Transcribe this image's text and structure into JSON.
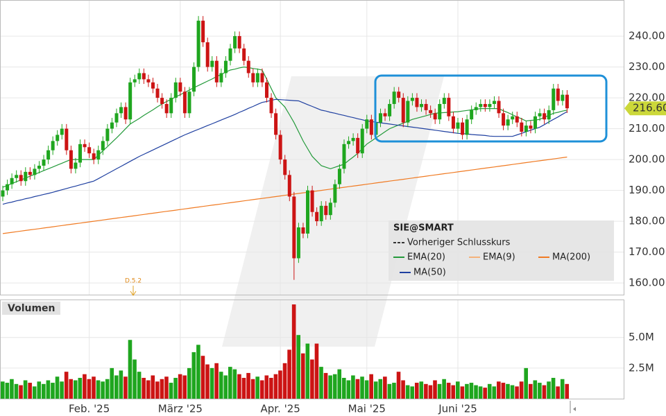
{
  "chart_data": [
    {
      "type": "candlestick",
      "title": "SIE@SMART",
      "up_color": "#1fa61f",
      "down_color": "#cc1414",
      "open": [
        188,
        190,
        192,
        194,
        195,
        193,
        196,
        195,
        197,
        198,
        200,
        203,
        206,
        208,
        210,
        203,
        197,
        199,
        205,
        204,
        202,
        200,
        203,
        206,
        210,
        212,
        215,
        217,
        213,
        225,
        226,
        228,
        226,
        225,
        223,
        220,
        218,
        215,
        220,
        225,
        222,
        215,
        222,
        230,
        245,
        238,
        230,
        232,
        225,
        228,
        232,
        236,
        240,
        236,
        232,
        228,
        225,
        228,
        225,
        220,
        215,
        208,
        200,
        195,
        188,
        168,
        178,
        176,
        190,
        183,
        180,
        185,
        182,
        186,
        192,
        197,
        205,
        206,
        207,
        202,
        210,
        213,
        208,
        212,
        215,
        214,
        218,
        222,
        220,
        212,
        219,
        220,
        217,
        218,
        216,
        215,
        213,
        218,
        220,
        214,
        210,
        212,
        208,
        213,
        216,
        217,
        218,
        217,
        218,
        219,
        215,
        211,
        213,
        214,
        212,
        209,
        211,
        210,
        214,
        215,
        213,
        216,
        223,
        219,
        221
      ],
      "high": [
        191.5,
        193.5,
        195.5,
        196.5,
        196.5,
        197.5,
        197.5,
        198.5,
        199.5,
        201.5,
        204.5,
        207.5,
        209.5,
        211.5,
        211.5,
        204.5,
        200.5,
        206.5,
        206.5,
        205.5,
        203.5,
        204.5,
        207.5,
        211.5,
        213.5,
        216.5,
        218.5,
        218.5,
        226.5,
        227.5,
        229.5,
        229.5,
        227.5,
        226.5,
        224.5,
        221.5,
        219.5,
        221.5,
        226.5,
        226.5,
        223.5,
        223.5,
        231.5,
        246.5,
        246.5,
        239.5,
        233.5,
        233.5,
        229.5,
        233.5,
        237.5,
        241.5,
        241.5,
        237.5,
        233.5,
        229.5,
        229.5,
        229.5,
        226.5,
        221.5,
        216.5,
        209.5,
        201.5,
        196.5,
        189.5,
        179.5,
        179.5,
        191.5,
        191.5,
        184.5,
        186.5,
        186.5,
        187.5,
        193.5,
        198.5,
        206.5,
        207.5,
        208.5,
        208.5,
        211.5,
        214.5,
        214.5,
        213.5,
        216.5,
        216.5,
        219.5,
        223.5,
        223.5,
        221.5,
        220.5,
        221.5,
        221.5,
        219.5,
        219.5,
        217.5,
        216.5,
        219.5,
        221.5,
        221.5,
        215.5,
        213.5,
        213.5,
        214.5,
        217.5,
        218.5,
        219.5,
        219.5,
        219.5,
        220.5,
        220.5,
        216.5,
        214.5,
        215.5,
        215.5,
        213.5,
        212.5,
        212.5,
        215.5,
        216.5,
        216.5,
        217.5,
        224.5,
        224.5,
        222.5,
        222.5
      ],
      "low": [
        186.5,
        188.5,
        190.5,
        192.5,
        191.5,
        191.5,
        193.5,
        193.5,
        195.5,
        196.5,
        198.5,
        201.5,
        204.5,
        206.5,
        201.5,
        195.5,
        195.5,
        197.5,
        202.5,
        200.5,
        198.5,
        198.5,
        201.5,
        204.5,
        208.5,
        210.5,
        213.5,
        211.5,
        211.5,
        223.5,
        224.5,
        224.5,
        223.5,
        221.5,
        218.5,
        216.5,
        213.5,
        213.5,
        218.5,
        220.5,
        213.5,
        213.5,
        220.5,
        228.5,
        236.5,
        228.5,
        228.5,
        223.5,
        223.5,
        226.5,
        230.5,
        234.5,
        234.5,
        230.5,
        226.5,
        223.5,
        223.5,
        223.5,
        218.5,
        213.5,
        206.5,
        198.5,
        193.5,
        186.5,
        161,
        166.5,
        174.5,
        174.5,
        181.5,
        178.5,
        178.5,
        180.5,
        180.5,
        184.5,
        190.5,
        195.5,
        203.5,
        204.5,
        200.5,
        200.5,
        208.5,
        206.5,
        206.5,
        210.5,
        212.5,
        212.5,
        216.5,
        218.5,
        210.5,
        210.5,
        217.5,
        215.5,
        215.5,
        214.5,
        213.5,
        211.5,
        211.5,
        216.5,
        212.5,
        208.5,
        208.5,
        206.5,
        206.5,
        211.5,
        214.5,
        215.5,
        215.5,
        215.5,
        216.5,
        213.5,
        209.5,
        209.5,
        211.5,
        210.5,
        207.5,
        207.5,
        208.5,
        208.5,
        212.5,
        211.5,
        211.5,
        214.5,
        217.5,
        217.5,
        215.1
      ],
      "close": [
        190,
        192,
        194,
        195,
        193,
        196,
        195,
        197,
        198,
        200,
        203,
        206,
        208,
        210,
        203,
        197,
        199,
        205,
        204,
        202,
        200,
        203,
        206,
        210,
        212,
        215,
        217,
        213,
        225,
        226,
        228,
        226,
        225,
        223,
        220,
        218,
        215,
        220,
        225,
        222,
        215,
        222,
        230,
        245,
        238,
        230,
        232,
        225,
        228,
        232,
        236,
        240,
        236,
        232,
        228,
        225,
        228,
        225,
        220,
        215,
        208,
        200,
        195,
        188,
        168,
        178,
        176,
        190,
        183,
        180,
        185,
        182,
        186,
        192,
        197,
        205,
        206,
        207,
        202,
        210,
        213,
        208,
        212,
        215,
        214,
        218,
        222,
        220,
        212,
        219,
        220,
        217,
        218,
        216,
        215,
        213,
        218,
        220,
        214,
        210,
        212,
        208,
        213,
        216,
        217,
        218,
        217,
        218,
        219,
        215,
        211,
        213,
        214,
        212,
        209,
        211,
        210,
        214,
        215,
        213,
        216,
        223,
        219,
        221,
        216.6
      ],
      "series": [
        {
          "name": "EMA(20)",
          "color": "#239a3a",
          "values": [
            191,
            191.6,
            192.2,
            192.8,
            193.4,
            194,
            194.6,
            195.2,
            195.8,
            196.4,
            197,
            197.6,
            198.2,
            198.8,
            199.4,
            200,
            200,
            200,
            200,
            200,
            200,
            201.4,
            202.8,
            204.2,
            205.6,
            207,
            208.5,
            210,
            211.5,
            212.4,
            213.3,
            214.3,
            215.2,
            216.1,
            217.1,
            218,
            218.8,
            219.5,
            220.3,
            221,
            221.8,
            222.5,
            223.3,
            224,
            224.7,
            225.4,
            226.1,
            226.9,
            227.6,
            228.3,
            229,
            229.3,
            229.7,
            230,
            229.8,
            229.5,
            229.3,
            229,
            226,
            223,
            220,
            218.5,
            217,
            214.5,
            212,
            209,
            206,
            203.5,
            201,
            199.5,
            198,
            197.5,
            197,
            197.5,
            198,
            198.5,
            199.7,
            200.8,
            202,
            203.5,
            205,
            206,
            207,
            208,
            209,
            210,
            210.6,
            211.2,
            211.8,
            212.4,
            213,
            213.4,
            213.8,
            214.2,
            214.6,
            215,
            215.1,
            215.2,
            215.3,
            215.4,
            215.5,
            215.7,
            215.9,
            216.1,
            216.3,
            216.5,
            216.5,
            216.5,
            216.5,
            216.5,
            215.8,
            215.2,
            214.5,
            213.8,
            213.2,
            212.5,
            212.7,
            212.8,
            213,
            213.7,
            214.3,
            215,
            215.3,
            215.7,
            216
          ]
        },
        {
          "name": "MA(200)",
          "color": "#f07a22",
          "values": [
            176,
            176.2,
            176.4,
            176.6,
            176.8,
            177,
            177.2,
            177.4,
            177.6,
            177.8,
            178,
            178.2,
            178.4,
            178.6,
            178.8,
            179,
            179.2,
            179.4,
            179.6,
            179.8,
            180,
            180.2,
            180.4,
            180.6,
            180.8,
            181,
            181.2,
            181.4,
            181.6,
            181.8,
            182,
            182.2,
            182.4,
            182.6,
            182.8,
            183,
            183.2,
            183.4,
            183.6,
            183.8,
            184,
            184.2,
            184.4,
            184.6,
            184.8,
            185,
            185.2,
            185.4,
            185.6,
            185.8,
            186,
            186.2,
            186.4,
            186.6,
            186.8,
            187,
            187.2,
            187.4,
            187.6,
            187.8,
            188,
            188.2,
            188.4,
            188.6,
            188.8,
            189,
            189.2,
            189.4,
            189.6,
            189.8,
            190,
            190.2,
            190.4,
            190.6,
            190.8,
            191,
            191.2,
            191.4,
            191.6,
            191.8,
            192,
            192.2,
            192.4,
            192.6,
            192.8,
            193,
            193.2,
            193.4,
            193.6,
            193.8,
            194,
            194.2,
            194.4,
            194.6,
            194.8,
            195,
            195.2,
            195.4,
            195.6,
            195.8,
            196,
            196.2,
            196.4,
            196.6,
            196.8,
            197,
            197.2,
            197.4,
            197.6,
            197.8,
            198,
            198.2,
            198.4,
            198.6,
            198.8,
            199,
            199.2,
            199.4,
            199.6,
            199.8,
            200,
            200.2,
            200.4,
            200.6,
            200.8
          ]
        },
        {
          "name": "MA(50)",
          "color": "#1e3fa0",
          "values": [
            185.5,
            185.9,
            186.2,
            186.6,
            186.9,
            187.3,
            187.6,
            188,
            188.3,
            188.7,
            189,
            189.4,
            189.8,
            190.2,
            190.6,
            191,
            191.4,
            191.8,
            192.2,
            192.6,
            193,
            193.8,
            194.6,
            195.4,
            196.2,
            197,
            197.8,
            198.6,
            199.4,
            200.2,
            201,
            201.7,
            202.4,
            203.1,
            203.8,
            204.5,
            205.2,
            205.9,
            206.6,
            207.3,
            208,
            208.6,
            209.2,
            209.8,
            210.4,
            211,
            211.6,
            212.2,
            212.8,
            213.4,
            214,
            214.6,
            215.3,
            215.9,
            216.6,
            217.2,
            217.9,
            218.5,
            218.8,
            219.2,
            219.5,
            219.4,
            219.3,
            219.2,
            219.1,
            219,
            218.4,
            217.8,
            217.2,
            216.6,
            216,
            215.7,
            215.3,
            215,
            214.6,
            214.3,
            213.9,
            213.6,
            213.2,
            212.9,
            212.5,
            212.3,
            212.1,
            211.9,
            211.7,
            211.5,
            211.3,
            211.1,
            210.9,
            210.7,
            210.5,
            210.3,
            210.1,
            209.9,
            209.7,
            209.5,
            209.3,
            209.1,
            208.9,
            208.7,
            208.5,
            208.4,
            208.3,
            208.1,
            208,
            207.9,
            207.8,
            207.6,
            207.5,
            207.5,
            207.5,
            207.5,
            207.5,
            208,
            208.5,
            209,
            209.5,
            210,
            210.5,
            211.3,
            212.2,
            213,
            213.8,
            214.7,
            215.5
          ]
        }
      ],
      "other_legend": [
        {
          "name": "Vorheriger Schlusskurs",
          "color": "#333333"
        },
        {
          "name": "EMA(9)",
          "color": "#f5b27a"
        }
      ],
      "ylim": [
        156.2,
        251.7
      ],
      "yticks": [
        {
          "value": 160,
          "label": "160.00"
        },
        {
          "value": 170,
          "label": "170.00"
        },
        {
          "value": 180,
          "label": "180.00"
        },
        {
          "value": 190,
          "label": "190.00"
        },
        {
          "value": 200,
          "label": "200.00"
        },
        {
          "value": 210,
          "label": "210.00"
        },
        {
          "value": 220,
          "label": "220.00"
        },
        {
          "value": 230,
          "label": "230.00"
        },
        {
          "value": 240,
          "label": "240.00"
        }
      ],
      "last_price": {
        "value": 216.6,
        "label": "216.60"
      },
      "annotation": "D.5.2",
      "grid": true
    },
    {
      "type": "bar",
      "title": "Volumen",
      "categories": [
        null,
        null,
        null,
        null,
        null,
        null,
        null,
        null,
        null,
        null,
        null,
        null,
        null,
        null,
        null,
        null,
        null,
        null,
        null,
        "Feb. '25",
        null,
        null,
        null,
        null,
        null,
        null,
        null,
        null,
        null,
        null,
        null,
        null,
        null,
        null,
        null,
        null,
        null,
        null,
        null,
        "März '25",
        null,
        null,
        null,
        null,
        null,
        null,
        null,
        null,
        null,
        null,
        null,
        null,
        null,
        null,
        null,
        null,
        null,
        null,
        null,
        null,
        null,
        "Apr. '25",
        null,
        null,
        null,
        null,
        null,
        null,
        null,
        null,
        null,
        null,
        null,
        null,
        null,
        null,
        null,
        null,
        null,
        null,
        "Mai '25",
        null,
        null,
        null,
        null,
        null,
        null,
        null,
        null,
        null,
        null,
        null,
        null,
        null,
        null,
        null,
        null,
        null,
        null,
        null,
        "Juni '25",
        null,
        null,
        null,
        null,
        null,
        null,
        null,
        null,
        null,
        null,
        null,
        null,
        null,
        null,
        null,
        null,
        null,
        null,
        null,
        null,
        null,
        null,
        null,
        null
      ],
      "values": [
        1.4,
        1.3,
        1.6,
        1.2,
        1.1,
        1.5,
        1.3,
        1.0,
        1.4,
        1.2,
        1.5,
        1.3,
        1.8,
        1.4,
        2.2,
        1.6,
        1.5,
        1.7,
        2.0,
        1.6,
        1.8,
        1.5,
        1.4,
        1.6,
        2.5,
        1.9,
        2.3,
        1.8,
        4.8,
        3.2,
        2.2,
        1.7,
        1.5,
        1.9,
        1.4,
        1.6,
        1.8,
        1.3,
        1.7,
        2.0,
        1.9,
        2.5,
        3.8,
        4.4,
        3.5,
        2.8,
        2.5,
        2.9,
        2.2,
        1.9,
        2.6,
        2.4,
        2.0,
        1.7,
        2.1,
        1.6,
        1.8,
        1.5,
        1.9,
        1.7,
        2.0,
        2.3,
        2.9,
        4.0,
        7.7,
        5.2,
        3.7,
        4.5,
        3.2,
        4.5,
        2.6,
        2.1,
        1.9,
        2.0,
        2.4,
        1.7,
        1.5,
        1.9,
        1.6,
        1.8,
        1.5,
        2.0,
        1.4,
        1.6,
        1.8,
        1.2,
        1.3,
        2.2,
        1.5,
        1.1,
        1.0,
        1.3,
        1.4,
        1.2,
        1.1,
        1.5,
        1.2,
        1.6,
        1.3,
        1.1,
        1.4,
        1.0,
        1.2,
        1.3,
        1.1,
        1.0,
        0.9,
        1.2,
        1.0,
        1.4,
        1.3,
        1.2,
        1.1,
        1.0,
        1.4,
        2.5,
        1.2,
        1.5,
        1.3,
        1.1,
        1.4,
        1.7,
        1.0,
        1.6,
        1.2
      ],
      "ylim": [
        0,
        8.1
      ],
      "yticks": [
        {
          "value": 2.5,
          "label": "2.5M"
        },
        {
          "value": 5,
          "label": "5.0M"
        }
      ],
      "grid": true
    }
  ]
}
